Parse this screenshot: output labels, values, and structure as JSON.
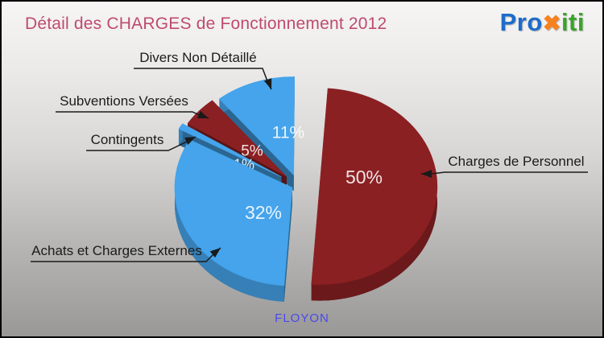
{
  "title": "Détail des CHARGES de Fonctionnement 2012",
  "logo": {
    "pro": "Pro",
    "x": "✖",
    "iti": "iti"
  },
  "footer": {
    "commune": "FLOYON"
  },
  "colors": {
    "title": "#be4a72",
    "slice_blue": "#45a4eb",
    "slice_darkred": "#8b2023",
    "label_text": "#1b1b1b",
    "percent_text": "#ffffff",
    "footer_text": "#4948ec",
    "logo_blue": "#1d6ccb",
    "logo_orange": "#f5821f",
    "logo_green": "#3aa32a"
  },
  "chart_data": {
    "type": "pie",
    "title": "Détail des CHARGES de Fonctionnement 2012",
    "style": "3d-exploded",
    "legend_position": "callout-labels",
    "unit": "percent",
    "slices": [
      {
        "label": "Charges de Personnel",
        "value": 50,
        "display": "50%",
        "color": "#8b2023"
      },
      {
        "label": "Achats et Charges Externes",
        "value": 32,
        "display": "32%",
        "color": "#45a4eb"
      },
      {
        "label": "Contingents",
        "value": 1,
        "display": "1%",
        "color": "#45a4eb"
      },
      {
        "label": "Subventions Versées",
        "value": 5,
        "display": "5%",
        "color": "#8b2023"
      },
      {
        "label": "Divers Non Détaillé",
        "value": 11,
        "display": "11%",
        "color": "#45a4eb"
      }
    ]
  }
}
